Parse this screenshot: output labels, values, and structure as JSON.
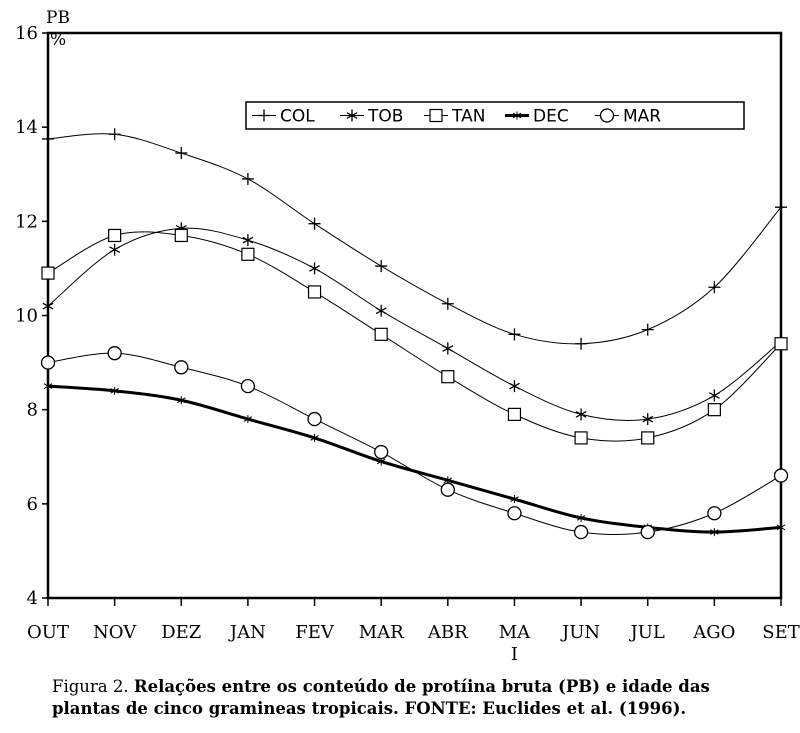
{
  "chart_data": {
    "type": "line",
    "ylabel": "PB",
    "yunit": "%",
    "ylim": [
      4,
      16
    ],
    "yticks": [
      4,
      6,
      8,
      10,
      12,
      14,
      16
    ],
    "categories": [
      "OUT",
      "NOV",
      "DEZ",
      "JAN",
      "FEV",
      "MAR",
      "ABR",
      "MA I",
      "JUN",
      "JUL",
      "AGO",
      "SET"
    ],
    "category_labels": [
      [
        "OUT"
      ],
      [
        "NOV"
      ],
      [
        "DEZ"
      ],
      [
        "JAN"
      ],
      [
        "FEV"
      ],
      [
        "MAR"
      ],
      [
        "ABR"
      ],
      [
        "MA",
        "I"
      ],
      [
        "JUN"
      ],
      [
        "JUL"
      ],
      [
        "AGO"
      ],
      [
        "SET"
      ]
    ],
    "legend_position": "top-right",
    "series": [
      {
        "name": "COL",
        "marker": "plus",
        "values": [
          13.75,
          13.85,
          13.45,
          12.9,
          11.95,
          11.05,
          10.25,
          9.6,
          9.4,
          9.7,
          10.6,
          12.3
        ]
      },
      {
        "name": "TOB",
        "marker": "star",
        "values": [
          10.2,
          11.4,
          11.85,
          11.6,
          11.0,
          10.1,
          9.3,
          8.5,
          7.9,
          7.8,
          8.3,
          9.45
        ]
      },
      {
        "name": "TAN",
        "marker": "square",
        "values": [
          10.9,
          11.7,
          11.7,
          11.3,
          10.5,
          9.6,
          8.7,
          7.9,
          7.4,
          7.4,
          8.0,
          9.4
        ]
      },
      {
        "name": "DEC",
        "marker": "thick-line",
        "values": [
          8.5,
          8.4,
          8.2,
          7.8,
          7.4,
          6.9,
          6.5,
          6.1,
          5.7,
          5.5,
          5.4,
          5.5
        ]
      },
      {
        "name": "MAR",
        "marker": "circle",
        "values": [
          9.0,
          9.2,
          8.9,
          8.5,
          7.8,
          7.1,
          6.3,
          5.8,
          5.4,
          5.4,
          5.8,
          6.6
        ]
      }
    ]
  },
  "caption": {
    "prefix": "Figura 2. ",
    "text": "Relações entre os conteúdo de protíina bruta (PB) e idade das plantas de cinco gramineas tropicais. FONTE: Euclides et al. (1996)."
  }
}
